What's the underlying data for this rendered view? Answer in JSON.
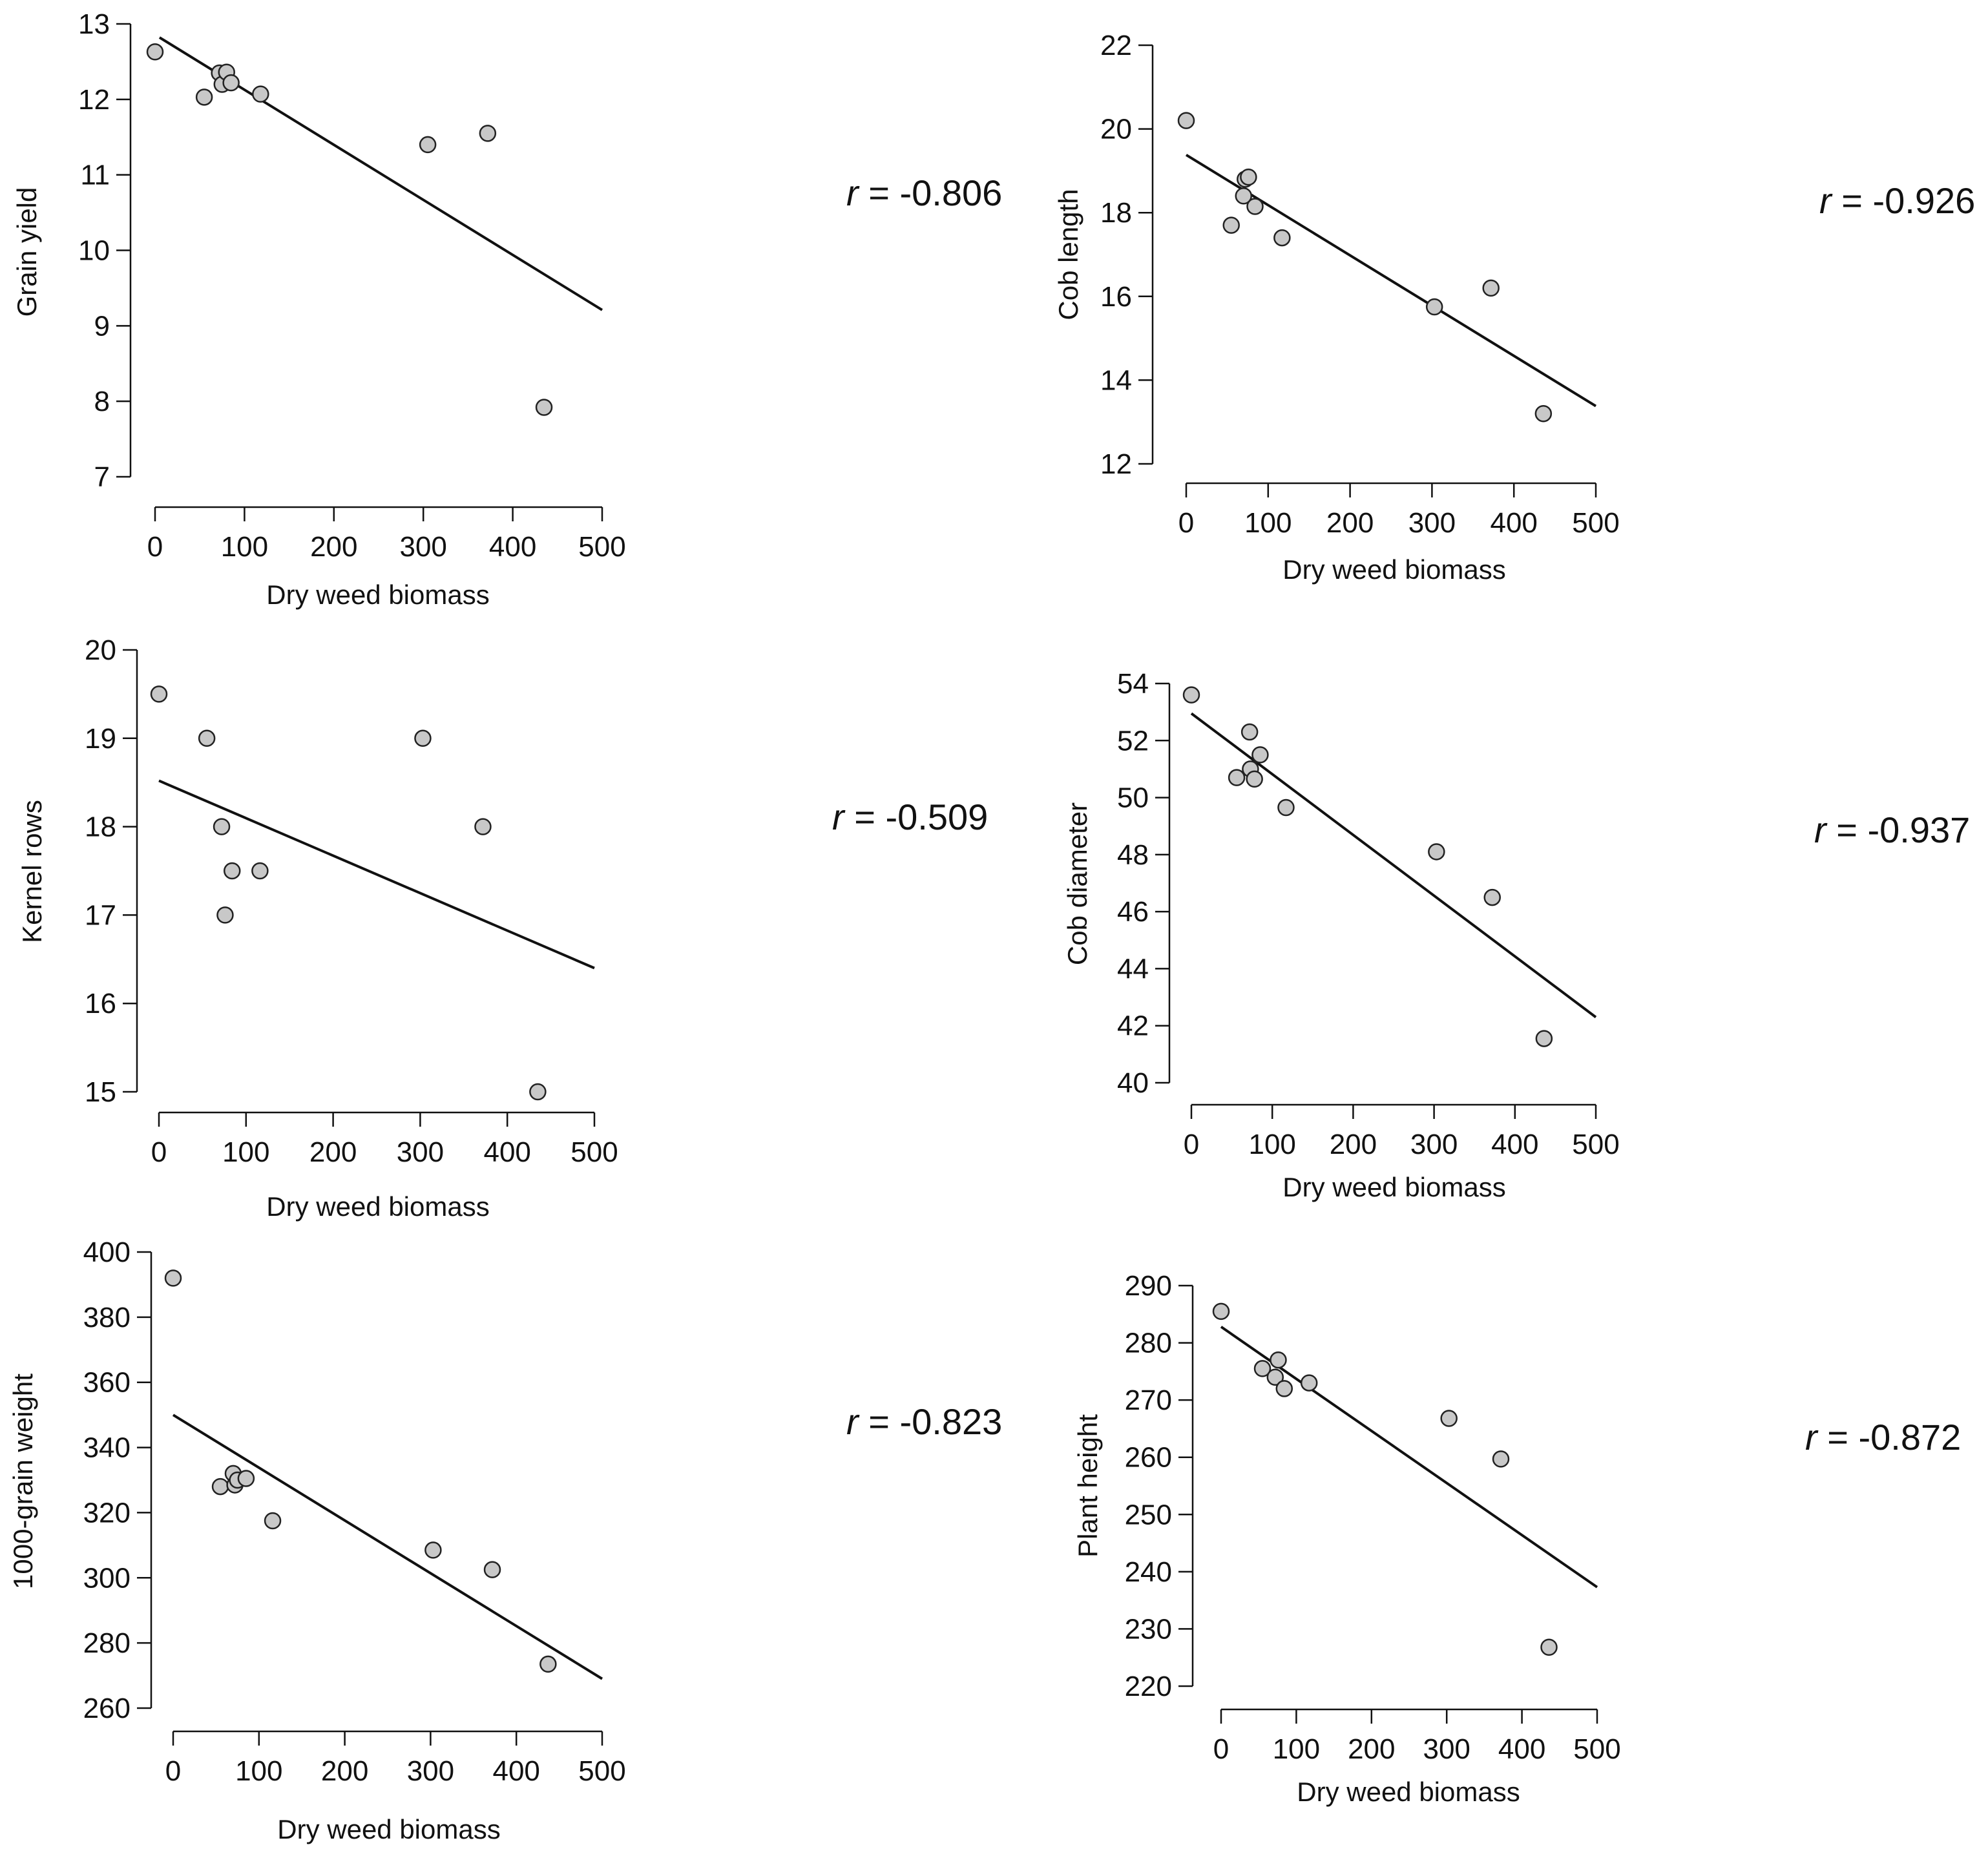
{
  "chart_data": [
    {
      "type": "scatter",
      "title": "",
      "xlabel": "Dry weed biomass",
      "ylabel": "Grain yield",
      "xlim": [
        0,
        500
      ],
      "ylim": [
        7,
        13
      ],
      "xticks": [
        "0",
        "100",
        "200",
        "300",
        "400",
        "500"
      ],
      "yticks": [
        "7",
        "8",
        "9",
        "10",
        "11",
        "12",
        "13"
      ],
      "x": [
        0,
        55,
        72,
        75,
        80,
        85,
        118,
        305,
        372,
        435
      ],
      "y": [
        12.63,
        12.03,
        12.35,
        12.2,
        12.36,
        12.22,
        12.07,
        11.4,
        11.55,
        7.92
      ],
      "fit": {
        "x": [
          5,
          500
        ],
        "y": [
          12.82,
          9.21
        ]
      },
      "r_label": "= -0.806",
      "r_symbol": "r",
      "grid": false,
      "legend": "none"
    },
    {
      "type": "scatter",
      "title": "",
      "xlabel": "Dry weed biomass",
      "ylabel": "Cob length",
      "xlim": [
        0,
        500
      ],
      "ylim": [
        12,
        22
      ],
      "xticks": [
        "0",
        "100",
        "200",
        "300",
        "400",
        "500"
      ],
      "yticks": [
        "12",
        "14",
        "16",
        "18",
        "20",
        "22"
      ],
      "x": [
        0,
        55,
        70,
        72,
        76,
        84,
        117,
        303,
        372,
        436
      ],
      "y": [
        20.2,
        17.7,
        18.4,
        18.8,
        18.85,
        18.15,
        17.4,
        15.75,
        16.2,
        13.2
      ],
      "fit": {
        "x": [
          0,
          500
        ],
        "y": [
          19.38,
          13.38
        ]
      },
      "r_label": "= -0.926",
      "r_symbol": "r",
      "grid": false,
      "legend": "none"
    },
    {
      "type": "scatter",
      "title": "",
      "xlabel": "Dry weed biomass",
      "ylabel": "Kernel rows",
      "xlim": [
        0,
        500
      ],
      "ylim": [
        15,
        20
      ],
      "xticks": [
        "0",
        "100",
        "200",
        "300",
        "400",
        "500"
      ],
      "yticks": [
        "15",
        "16",
        "17",
        "18",
        "19",
        "20"
      ],
      "x": [
        0,
        55,
        72,
        76,
        84,
        116,
        303,
        372,
        435
      ],
      "y": [
        19.5,
        19.0,
        18.0,
        17.0,
        17.5,
        17.5,
        19.0,
        18.0,
        15.0
      ],
      "fit": {
        "x": [
          0,
          500
        ],
        "y": [
          18.52,
          16.4
        ]
      },
      "r_label": "= -0.509",
      "r_symbol": "r",
      "grid": false,
      "legend": "none"
    },
    {
      "type": "scatter",
      "title": "",
      "xlabel": "Dry weed biomass",
      "ylabel": "Cob diameter",
      "xlim": [
        0,
        500
      ],
      "ylim": [
        40,
        54
      ],
      "xticks": [
        "0",
        "100",
        "200",
        "300",
        "400",
        "500"
      ],
      "yticks": [
        "40",
        "42",
        "44",
        "46",
        "48",
        "50",
        "52",
        "54"
      ],
      "x": [
        0,
        56,
        72,
        73,
        78,
        85,
        117,
        303,
        372,
        436
      ],
      "y": [
        53.6,
        50.7,
        52.3,
        51.0,
        50.65,
        51.5,
        49.65,
        48.1,
        46.5,
        41.55
      ],
      "fit": {
        "x": [
          0,
          500
        ],
        "y": [
          52.95,
          42.3
        ]
      },
      "r_label": "= -0.937",
      "r_symbol": "r",
      "grid": false,
      "legend": "none"
    },
    {
      "type": "scatter",
      "title": "",
      "xlabel": "Dry weed biomass",
      "ylabel": "1000-grain weight",
      "xlim": [
        0,
        500
      ],
      "ylim": [
        260,
        400
      ],
      "xticks": [
        "0",
        "100",
        "200",
        "300",
        "400",
        "500"
      ],
      "yticks": [
        "260",
        "280",
        "300",
        "320",
        "340",
        "360",
        "380",
        "400"
      ],
      "x": [
        0,
        55,
        70,
        72,
        75,
        85,
        116,
        303,
        372,
        437
      ],
      "y": [
        392,
        328,
        332,
        328.5,
        330,
        330.5,
        317.5,
        308.5,
        302.5,
        273.5
      ],
      "fit": {
        "x": [
          0,
          500
        ],
        "y": [
          350,
          269
        ]
      },
      "r_label": "= -0.823",
      "r_symbol": "r",
      "grid": false,
      "legend": "none"
    },
    {
      "type": "scatter",
      "title": "",
      "xlabel": "Dry weed biomass",
      "ylabel": "Plant height",
      "xlim": [
        0,
        500
      ],
      "ylim": [
        220,
        290
      ],
      "xticks": [
        "0",
        "100",
        "200",
        "300",
        "400",
        "500"
      ],
      "yticks": [
        "220",
        "230",
        "240",
        "250",
        "260",
        "270",
        "280",
        "290"
      ],
      "x": [
        0,
        55,
        72,
        76,
        84,
        117,
        303,
        372,
        436
      ],
      "y": [
        285.5,
        275.5,
        274,
        277,
        272,
        273,
        266.8,
        259.7,
        226.8
      ],
      "fit": {
        "x": [
          0,
          500
        ],
        "y": [
          282.8,
          237.3
        ]
      },
      "r_label": "= -0.872",
      "r_symbol": "r",
      "grid": false,
      "legend": "none"
    }
  ]
}
